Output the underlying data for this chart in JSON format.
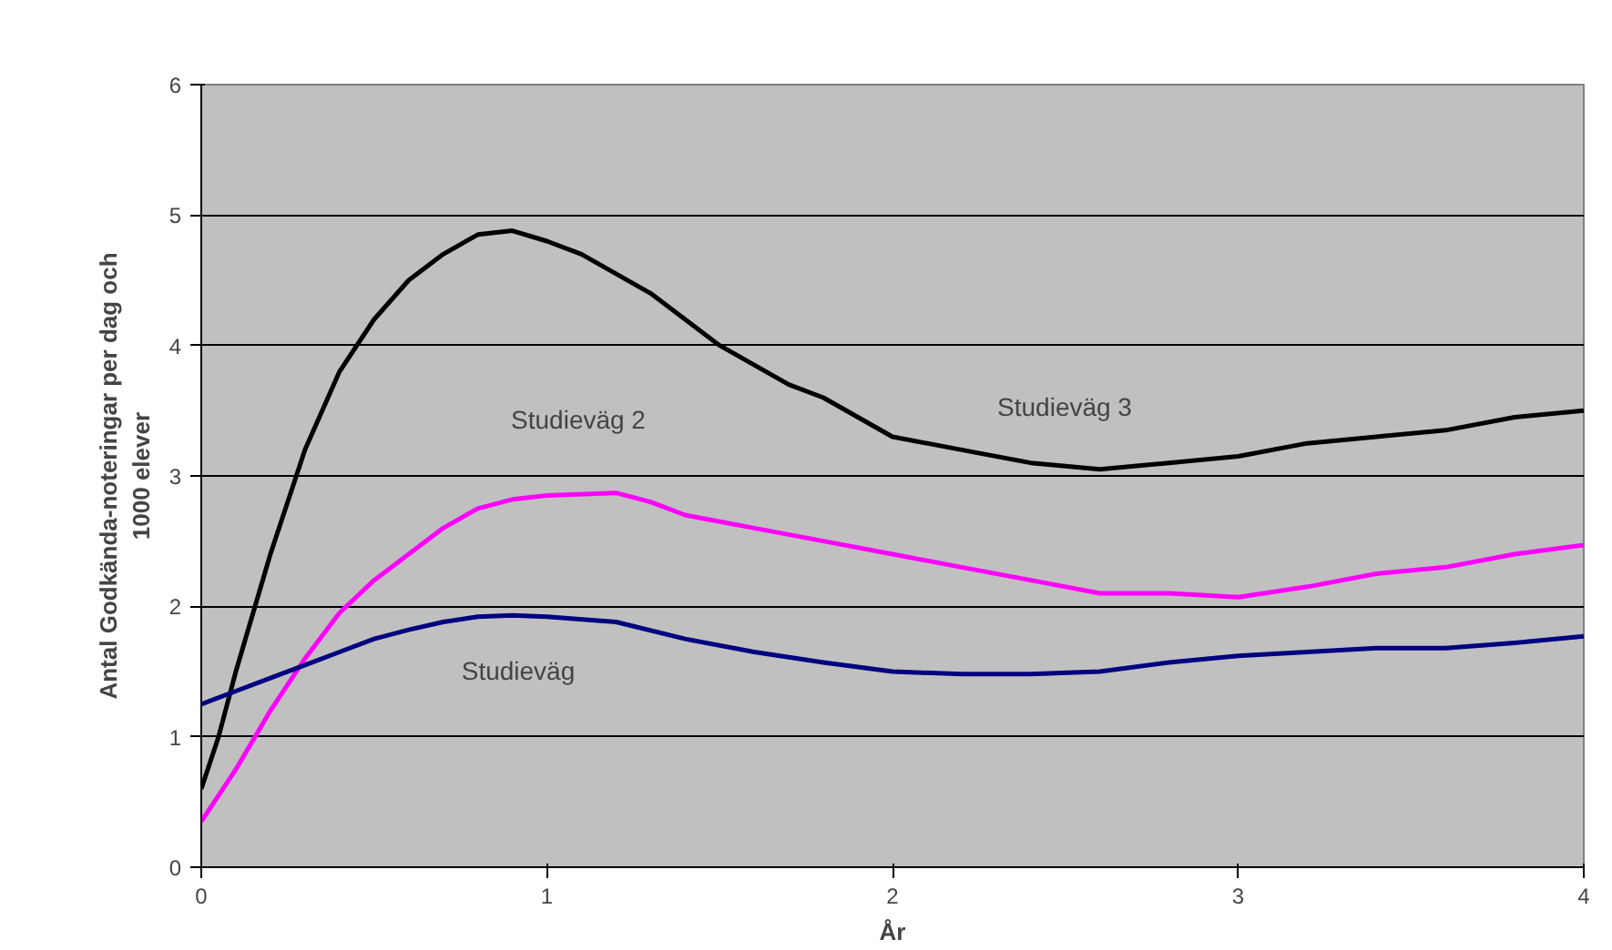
{
  "chart_data": {
    "type": "line",
    "xlabel": "År",
    "ylabel": "Antal Godkända-noteringar per dag och 1000 elever",
    "xlim": [
      0,
      4
    ],
    "xticks": [
      0,
      1,
      2,
      3,
      4
    ],
    "ylim": [
      0,
      6
    ],
    "yticks": [
      0,
      1,
      2,
      3,
      4,
      5,
      6
    ],
    "grid": "y",
    "marker": "none",
    "line_style": "solid",
    "series": [
      {
        "color": "#000000",
        "x": [
          0,
          0.05,
          0.1,
          0.2,
          0.3,
          0.4,
          0.5,
          0.6,
          0.7,
          0.8,
          0.9,
          1.0,
          1.1,
          1.2,
          1.3,
          1.4,
          1.5,
          1.6,
          1.7,
          1.8,
          1.9,
          2.0,
          2.2,
          2.4,
          2.6,
          2.8,
          3.0,
          3.2,
          3.4,
          3.6,
          3.8,
          4.0
        ],
        "values": [
          0.6,
          1.0,
          1.5,
          2.4,
          3.2,
          3.8,
          4.2,
          4.5,
          4.7,
          4.85,
          4.88,
          4.8,
          4.7,
          4.55,
          4.4,
          4.2,
          4.0,
          3.85,
          3.7,
          3.6,
          3.45,
          3.3,
          3.2,
          3.1,
          3.05,
          3.1,
          3.15,
          3.25,
          3.3,
          3.35,
          3.45,
          3.5
        ]
      },
      {
        "color": "#ff00ff",
        "x": [
          0,
          0.1,
          0.2,
          0.3,
          0.4,
          0.5,
          0.6,
          0.7,
          0.8,
          0.9,
          1.0,
          1.2,
          1.3,
          1.4,
          1.6,
          1.8,
          2.0,
          2.2,
          2.4,
          2.6,
          2.8,
          3.0,
          3.2,
          3.4,
          3.6,
          3.8,
          4.0
        ],
        "values": [
          0.35,
          0.75,
          1.2,
          1.6,
          1.95,
          2.2,
          2.4,
          2.6,
          2.75,
          2.82,
          2.85,
          2.87,
          2.8,
          2.7,
          2.6,
          2.5,
          2.4,
          2.3,
          2.2,
          2.1,
          2.1,
          2.07,
          2.15,
          2.25,
          2.3,
          2.4,
          2.47
        ]
      },
      {
        "color": "#000080",
        "x": [
          0,
          0.1,
          0.2,
          0.3,
          0.4,
          0.5,
          0.6,
          0.7,
          0.8,
          0.9,
          1.0,
          1.2,
          1.4,
          1.6,
          1.8,
          2.0,
          2.2,
          2.4,
          2.6,
          2.8,
          3.0,
          3.2,
          3.4,
          3.6,
          3.8,
          4.0
        ],
        "values": [
          1.25,
          1.35,
          1.45,
          1.55,
          1.65,
          1.75,
          1.82,
          1.88,
          1.92,
          1.93,
          1.92,
          1.88,
          1.75,
          1.65,
          1.57,
          1.5,
          1.48,
          1.48,
          1.5,
          1.57,
          1.62,
          1.65,
          1.68,
          1.68,
          1.72,
          1.77
        ]
      }
    ],
    "annotations": [
      "Studieväg 2",
      "Studieväg 3",
      "Studieväg"
    ]
  }
}
